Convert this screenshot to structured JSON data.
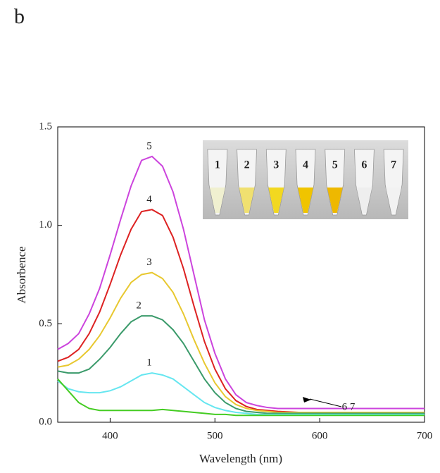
{
  "panel_label": "b",
  "chart_data": {
    "type": "line",
    "x_label": "Wavelength (nm)",
    "y_label": "Absorbence",
    "x": [
      350,
      360,
      370,
      380,
      390,
      400,
      410,
      420,
      430,
      440,
      450,
      460,
      470,
      480,
      490,
      500,
      510,
      520,
      530,
      540,
      550,
      560,
      580,
      600,
      650,
      700
    ],
    "xlim": [
      350,
      700
    ],
    "xticks": [
      400,
      500,
      600,
      700
    ],
    "ylim": [
      0,
      1.5
    ],
    "yticks": [
      {
        "value": 0,
        "label": "0.0"
      },
      0.5,
      {
        "value": 1,
        "label": "1.0"
      },
      {
        "value": 1.5,
        "label": "1.5"
      }
    ],
    "grid": false,
    "series": [
      {
        "name": "5",
        "color": "#cc44dd",
        "values": [
          0.37,
          0.4,
          0.45,
          0.55,
          0.68,
          0.85,
          1.03,
          1.2,
          1.33,
          1.35,
          1.3,
          1.17,
          0.98,
          0.75,
          0.52,
          0.35,
          0.22,
          0.14,
          0.1,
          0.085,
          0.075,
          0.07,
          0.07,
          0.07,
          0.07,
          0.07
        ]
      },
      {
        "name": "4",
        "color": "#dd2222",
        "values": [
          0.31,
          0.33,
          0.37,
          0.45,
          0.56,
          0.7,
          0.85,
          0.98,
          1.07,
          1.08,
          1.05,
          0.94,
          0.78,
          0.59,
          0.41,
          0.27,
          0.17,
          0.11,
          0.08,
          0.065,
          0.06,
          0.055,
          0.05,
          0.05,
          0.05,
          0.05
        ]
      },
      {
        "name": "3",
        "color": "#e8c830",
        "values": [
          0.28,
          0.29,
          0.32,
          0.37,
          0.44,
          0.53,
          0.63,
          0.71,
          0.75,
          0.76,
          0.73,
          0.66,
          0.55,
          0.42,
          0.3,
          0.2,
          0.13,
          0.09,
          0.07,
          0.06,
          0.055,
          0.05,
          0.05,
          0.05,
          0.05,
          0.05
        ]
      },
      {
        "name": "2",
        "color": "#3a9a6a",
        "values": [
          0.26,
          0.25,
          0.25,
          0.27,
          0.32,
          0.38,
          0.45,
          0.51,
          0.54,
          0.54,
          0.52,
          0.47,
          0.4,
          0.31,
          0.22,
          0.15,
          0.1,
          0.07,
          0.055,
          0.05,
          0.045,
          0.045,
          0.045,
          0.045,
          0.045,
          0.045
        ]
      },
      {
        "name": "1",
        "color": "#66e6f0",
        "values": [
          0.21,
          0.17,
          0.155,
          0.15,
          0.15,
          0.16,
          0.18,
          0.21,
          0.24,
          0.25,
          0.24,
          0.22,
          0.18,
          0.14,
          0.1,
          0.075,
          0.06,
          0.05,
          0.045,
          0.04,
          0.04,
          0.04,
          0.04,
          0.04,
          0.04,
          0.04
        ]
      },
      {
        "name": "6 7",
        "color": "#44cc22",
        "values": [
          0.22,
          0.16,
          0.1,
          0.07,
          0.06,
          0.06,
          0.06,
          0.06,
          0.06,
          0.06,
          0.065,
          0.06,
          0.055,
          0.05,
          0.045,
          0.04,
          0.04,
          0.035,
          0.035,
          0.035,
          0.035,
          0.035,
          0.035,
          0.035,
          0.035,
          0.035
        ]
      }
    ],
    "inset_labels": [
      "1",
      "2",
      "3",
      "4",
      "5",
      "6",
      "7"
    ],
    "inset_tube_colors": [
      "#f0f0d0",
      "#f0e070",
      "#f2d820",
      "#f0c400",
      "#eeb800",
      "#eeeeee",
      "#f2f2f2"
    ]
  }
}
